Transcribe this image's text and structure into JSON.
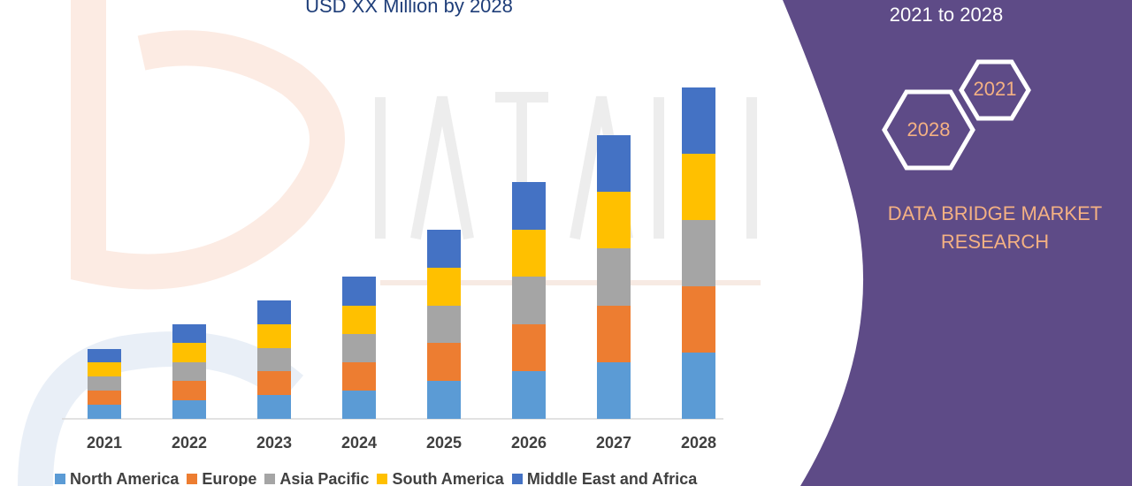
{
  "header": {
    "chart_title": "USD XX Million by 2028",
    "period": "2021 to 2028"
  },
  "badges": {
    "hex_top": "2021",
    "hex_bottom": "2028"
  },
  "brand": {
    "line1": "DATA BRIDGE MARKET",
    "line2": "RESEARCH"
  },
  "colors": {
    "panel": "#5e4b87",
    "north_america": "#5b9bd5",
    "europe": "#ed7d31",
    "asia_pacific": "#a5a5a5",
    "south_america": "#ffc000",
    "middle_east_africa": "#4472c4",
    "title_text": "#1f3e79",
    "brand_text": "#f4b183"
  },
  "chart_data": {
    "type": "bar",
    "stacked": true,
    "categories": [
      "2021",
      "2022",
      "2023",
      "2024",
      "2025",
      "2026",
      "2027",
      "2028"
    ],
    "series": [
      {
        "name": "North America",
        "color": "#5b9bd5",
        "values": [
          16,
          21,
          27,
          32,
          43,
          54,
          64,
          75
        ]
      },
      {
        "name": "Europe",
        "color": "#ed7d31",
        "values": [
          16,
          22,
          27,
          32,
          43,
          53,
          64,
          75
        ]
      },
      {
        "name": "Asia Pacific",
        "color": "#a5a5a5",
        "values": [
          16,
          21,
          26,
          32,
          42,
          54,
          65,
          75
        ]
      },
      {
        "name": "South America",
        "color": "#ffc000",
        "values": [
          16,
          22,
          27,
          32,
          43,
          53,
          64,
          75
        ]
      },
      {
        "name": "Middle East and Africa",
        "color": "#4472c4",
        "values": [
          15,
          21,
          27,
          33,
          43,
          54,
          64,
          75
        ]
      }
    ],
    "title": "USD XX Million by 2028",
    "xlabel": "",
    "ylabel": "",
    "ylim": [
      0,
      380
    ],
    "grid": false,
    "legend_position": "bottom"
  }
}
